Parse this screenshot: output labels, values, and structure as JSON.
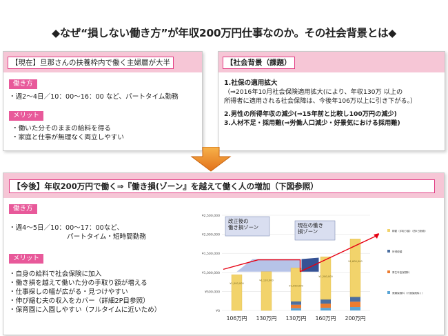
{
  "title": "◆なぜ“損しない働き方”が年収200万円仕事なのか。その社会背景とは◆",
  "now_panel": {
    "header": "【現在】旦那さんの扶養枠内で働く主婦層が大半",
    "tag1": "働き方",
    "line1": "・週2～4日／10：00～16：00 など、パートタイム勤務",
    "tag2": "メリット",
    "merit1": "・働いた分そのままの給料を得る",
    "merit2": "・家庭と仕事が無理なく両立しやすい"
  },
  "background_panel": {
    "header": "【社会背景（課題）",
    "item1_title": "1.社保の適用拡大",
    "item1_line1": "（⇒2016年10月社会保険適用拡大(により、年収130万 以上の",
    "item1_line2": "所得者に適用される社会保障は、今後年106万以上に引き下がる。）",
    "item2": "2.男性の所得年収の減少(⇒15年前と比較し100万円の減少)",
    "item3": "3.人材不足・採用難(⇒労働人口減少・好景気における採用難)"
  },
  "future_panel": {
    "header": "【今後】年収200万円で働く⇒『働き損(ゾーン』を越えて働く人の増加（下図参照）",
    "tag1": "働き方",
    "line1": "・週4～5日／10：00～17：00など、",
    "line2": "パートタイム・短時間勤務",
    "tag2": "メリット",
    "merits": [
      "・自身の給料で社会保険に加入",
      "・働き損を越えて働いた分の手取り額が増える",
      "・仕事探しの幅が広がる・見つけやすい",
      "・伸び縮む夫の収入をカバー（詳細2P目参照）",
      "・保育園に入園しやすい（フルタイムに近いため）"
    ]
  },
  "chart_data": {
    "type": "bar",
    "categories": [
      "106万円",
      "130万円",
      "130万円",
      "160万円",
      "200万円"
    ],
    "ylim": [
      0,
      2500000
    ],
    "yticks": [
      "¥2,500,000",
      "¥2,000,000",
      "¥1,500,000",
      "¥1,000,000",
      "¥500,000",
      "¥0"
    ],
    "series": [
      {
        "name": "稼動（手取り額）",
        "values": [
          940000,
          1020000,
          880000,
          1120000,
          1520000
        ]
      },
      {
        "name": "所得税",
        "values": [
          0,
          0,
          90000,
          110000,
          130000
        ]
      },
      {
        "name": "厚生年金保険料",
        "values": [
          0,
          0,
          90000,
          110000,
          140000
        ]
      },
      {
        "name": "健康保険料（介護保険除く）",
        "values": [
          0,
          0,
          60000,
          70000,
          90000
        ]
      }
    ],
    "bar_labels": [
      "¥1,000,000",
      "¥1,120,000",
      "¥1,050,000",
      "¥1,280,000",
      "¥1,600,000"
    ],
    "annotations": {
      "zone_after": "改正後の\n働き損ゾーン",
      "zone_current": "現在の働き\n損ゾーン",
      "badge": "手取り\n年収"
    },
    "legend": [
      "稼動（手取り額）（週5日勤務）",
      "所得税額",
      "厚生年金保険料",
      "健康保険料（介護保険除く）"
    ]
  },
  "colors": {
    "pink_band": "#f6c6d6",
    "pink_accent": "#e8599a",
    "arrow_orange": "#f39c12",
    "bar_yellow": "#f2d36b",
    "bar_gray": "#4c6fa0",
    "bar_orange": "#ec7c30",
    "bar_blue": "#5aa5d6",
    "zone_blue": "#a9b9e4",
    "red_line": "#e60012"
  }
}
